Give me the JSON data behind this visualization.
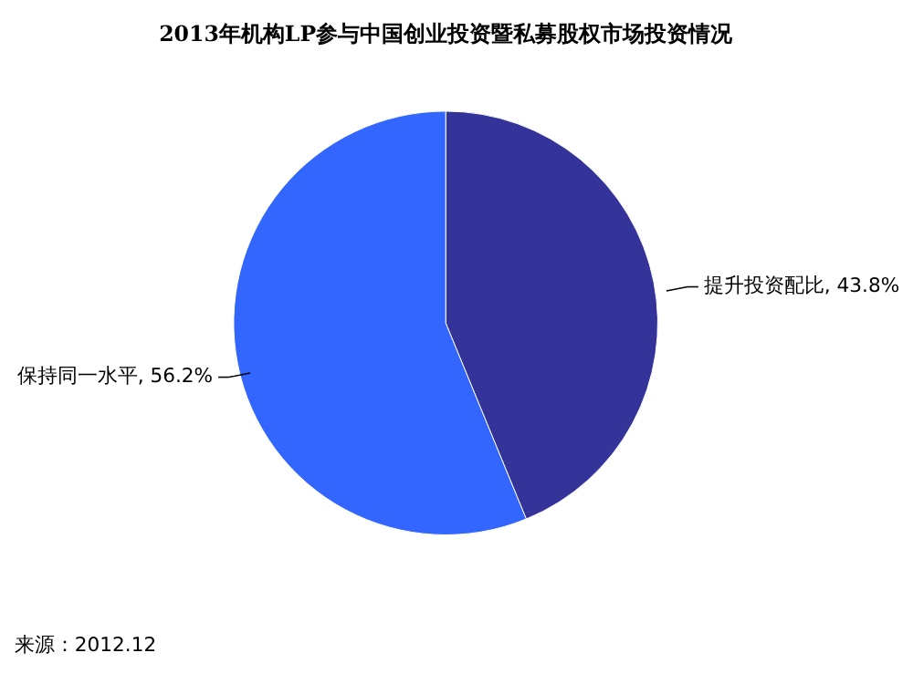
{
  "chart_data": {
    "type": "pie",
    "title": "2013年机构LP参与中国创业投资暨私募股权市场投资情况",
    "categories": [
      "提升投资配比",
      "保持同一水平"
    ],
    "values": [
      43.8,
      56.2
    ],
    "colors": [
      "#333399",
      "#3366ff"
    ],
    "value_labels": [
      "43.8%",
      "56.2%"
    ],
    "legend": false,
    "annotations": [
      "来源：2012.12"
    ]
  }
}
